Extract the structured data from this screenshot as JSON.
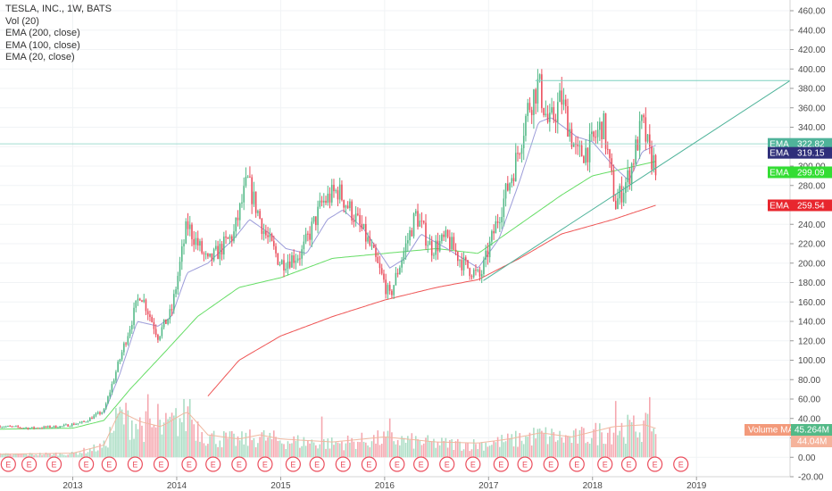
{
  "legend": {
    "title": "TESLA, INC., 1W, BATS",
    "items": [
      "Vol (20)",
      "EMA (200, close)",
      "EMA (100, close)",
      "EMA (20, close)"
    ]
  },
  "colors": {
    "up": "#53b987",
    "down": "#eb4d5c",
    "up_vol": "#a9dcc3",
    "down_vol": "#f5a6ae",
    "ema20": "#9c9cd9",
    "ema100": "#66dd66",
    "ema200": "#ee5555",
    "vol_ma": "#f0b8a0",
    "trend": "#4fb39a",
    "resistance": "#7dd0bf",
    "earnings": "#eb4d5c"
  },
  "chart_data": {
    "type": "candlestick",
    "symbol": "TESLA, INC., 1W, BATS",
    "y_axis": {
      "ticks": [
        -20,
        0,
        20,
        40,
        60,
        80,
        100,
        120,
        140,
        160,
        180,
        200,
        220,
        240,
        260,
        280,
        300,
        320,
        340,
        360,
        380,
        400,
        420,
        440,
        460
      ],
      "tick_labels": [
        "-20.00",
        "0.00",
        "20.00",
        "40.00",
        "60.00",
        "80.00",
        "100.00",
        "120.00",
        "140.00",
        "160.00",
        "180.00",
        "200.00",
        "220.00",
        "240.00",
        "260.00",
        "280.00",
        "300.00",
        "320.00",
        "340.00",
        "360.00",
        "380.00",
        "400.00",
        "420.00",
        "440.00",
        "460.00"
      ],
      "range": [
        -20,
        460
      ]
    },
    "x_axis": {
      "labels": [
        "2013",
        "2014",
        "2015",
        "2016",
        "2017",
        "2018",
        "2019"
      ],
      "label_years": [
        2013,
        2014,
        2015,
        2016,
        2017,
        2018,
        2019
      ],
      "range": [
        2012.3,
        2019.9
      ]
    },
    "price_anchors": [
      [
        2012.3,
        32
      ],
      [
        2012.6,
        30
      ],
      [
        2012.9,
        32
      ],
      [
        2013.1,
        36
      ],
      [
        2013.3,
        48
      ],
      [
        2013.45,
        100
      ],
      [
        2013.65,
        170
      ],
      [
        2013.82,
        125
      ],
      [
        2013.95,
        150
      ],
      [
        2014.1,
        240
      ],
      [
        2014.3,
        200
      ],
      [
        2014.55,
        230
      ],
      [
        2014.68,
        285
      ],
      [
        2014.85,
        230
      ],
      [
        2015.0,
        200
      ],
      [
        2015.2,
        210
      ],
      [
        2015.4,
        262
      ],
      [
        2015.55,
        275
      ],
      [
        2015.7,
        250
      ],
      [
        2015.85,
        220
      ],
      [
        2016.05,
        165
      ],
      [
        2016.15,
        200
      ],
      [
        2016.3,
        250
      ],
      [
        2016.45,
        215
      ],
      [
        2016.6,
        225
      ],
      [
        2016.75,
        200
      ],
      [
        2016.92,
        185
      ],
      [
        2017.1,
        250
      ],
      [
        2017.25,
        300
      ],
      [
        2017.38,
        360
      ],
      [
        2017.48,
        385
      ],
      [
        2017.58,
        340
      ],
      [
        2017.7,
        370
      ],
      [
        2017.85,
        310
      ],
      [
        2017.98,
        320
      ],
      [
        2018.1,
        345
      ],
      [
        2018.22,
        260
      ],
      [
        2018.35,
        290
      ],
      [
        2018.48,
        345
      ],
      [
        2018.55,
        310
      ],
      [
        2018.62,
        300
      ]
    ],
    "close_price": 322.82,
    "horizontal_line": 322.82,
    "resistance_level": 387,
    "ema20_anchors": [
      [
        2013.3,
        45
      ],
      [
        2013.45,
        85
      ],
      [
        2013.62,
        140
      ],
      [
        2013.82,
        135
      ],
      [
        2013.95,
        145
      ],
      [
        2014.1,
        190
      ],
      [
        2014.3,
        200
      ],
      [
        2014.55,
        225
      ],
      [
        2014.7,
        245
      ],
      [
        2014.9,
        230
      ],
      [
        2015.05,
        215
      ],
      [
        2015.25,
        210
      ],
      [
        2015.45,
        245
      ],
      [
        2015.6,
        255
      ],
      [
        2015.8,
        235
      ],
      [
        2016.05,
        195
      ],
      [
        2016.2,
        205
      ],
      [
        2016.35,
        230
      ],
      [
        2016.6,
        215
      ],
      [
        2016.9,
        195
      ],
      [
        2017.1,
        225
      ],
      [
        2017.3,
        285
      ],
      [
        2017.48,
        345
      ],
      [
        2017.6,
        350
      ],
      [
        2017.85,
        330
      ],
      [
        2018.0,
        325
      ],
      [
        2018.2,
        300
      ],
      [
        2018.35,
        285
      ],
      [
        2018.48,
        315
      ],
      [
        2018.62,
        322
      ]
    ],
    "ema100_anchors": [
      [
        2012.3,
        29
      ],
      [
        2013.0,
        30
      ],
      [
        2013.3,
        38
      ],
      [
        2013.55,
        70
      ],
      [
        2013.9,
        110
      ],
      [
        2014.2,
        145
      ],
      [
        2014.6,
        175
      ],
      [
        2015.0,
        185
      ],
      [
        2015.5,
        205
      ],
      [
        2016.0,
        210
      ],
      [
        2016.5,
        215
      ],
      [
        2016.9,
        210
      ],
      [
        2017.3,
        240
      ],
      [
        2017.7,
        270
      ],
      [
        2018.0,
        290
      ],
      [
        2018.62,
        305
      ]
    ],
    "ema200_anchors": [
      [
        2014.3,
        63
      ],
      [
        2014.6,
        100
      ],
      [
        2015.0,
        125
      ],
      [
        2015.5,
        145
      ],
      [
        2016.0,
        162
      ],
      [
        2016.5,
        175
      ],
      [
        2016.9,
        183
      ],
      [
        2017.3,
        205
      ],
      [
        2017.7,
        230
      ],
      [
        2018.2,
        245
      ],
      [
        2018.62,
        260
      ]
    ],
    "trendline": {
      "from": [
        2016.95,
        182
      ],
      "to": [
        2019.9,
        388
      ]
    },
    "resistance_line": {
      "from": [
        2017.45,
        388
      ],
      "to": [
        2019.9,
        388
      ]
    },
    "volume_anchors": [
      [
        2012.3,
        3
      ],
      [
        2013.0,
        4
      ],
      [
        2013.3,
        12
      ],
      [
        2013.45,
        45
      ],
      [
        2013.65,
        35
      ],
      [
        2013.85,
        30
      ],
      [
        2014.1,
        45
      ],
      [
        2014.3,
        22
      ],
      [
        2014.6,
        18
      ],
      [
        2014.8,
        22
      ],
      [
        2015.0,
        18
      ],
      [
        2015.5,
        15
      ],
      [
        2016.0,
        20
      ],
      [
        2016.5,
        15
      ],
      [
        2016.9,
        14
      ],
      [
        2017.2,
        18
      ],
      [
        2017.5,
        24
      ],
      [
        2017.8,
        20
      ],
      [
        2018.2,
        30
      ],
      [
        2018.5,
        32
      ],
      [
        2018.62,
        28
      ]
    ],
    "volume_spikes": [
      [
        2013.72,
        65
      ],
      [
        2013.82,
        55
      ],
      [
        2014.12,
        60
      ],
      [
        2015.4,
        42
      ],
      [
        2016.05,
        40
      ],
      [
        2018.22,
        58
      ],
      [
        2018.55,
        62
      ]
    ],
    "earnings_dates": [
      2012.38,
      2012.58,
      2012.82,
      2013.13,
      2013.35,
      2013.6,
      2013.85,
      2014.12,
      2014.35,
      2014.6,
      2014.85,
      2015.12,
      2015.35,
      2015.6,
      2015.85,
      2016.12,
      2016.35,
      2016.6,
      2016.85,
      2017.12,
      2017.35,
      2017.6,
      2017.85,
      2018.12,
      2018.35,
      2018.6,
      2018.85
    ],
    "earnings_label": "E",
    "price_badges": [
      {
        "label": "EMA",
        "value": "322.82",
        "color": "#4fb39a"
      },
      {
        "label": "EMA",
        "value": "319.15",
        "color": "#2f2f7a"
      },
      {
        "label": "EMA",
        "value": "299.09",
        "color": "#33dd33"
      },
      {
        "label": "EMA",
        "value": "259.54",
        "color": "#e8262e"
      }
    ],
    "volume_badges": [
      {
        "label": "Volume MA",
        "value": "45.264M",
        "color": "#f39a7b",
        "value_color": "#53b987"
      },
      {
        "value": "44.04M",
        "color": "#f5b39b"
      }
    ]
  }
}
